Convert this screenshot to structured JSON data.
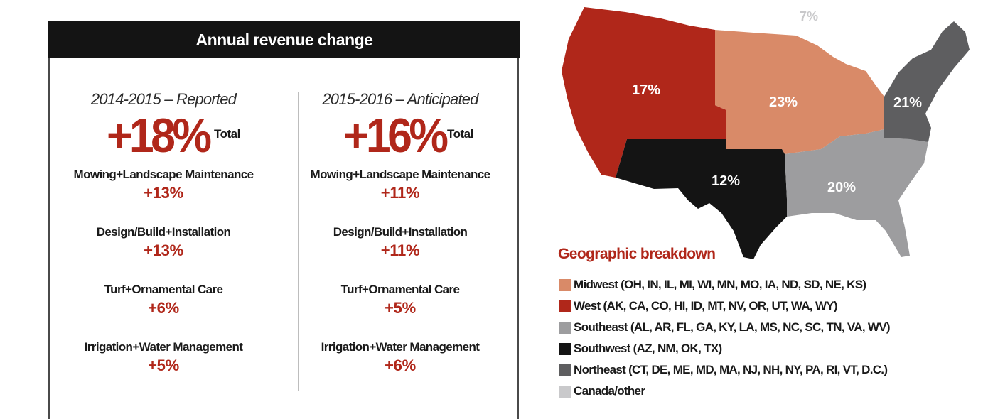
{
  "revenue": {
    "title": "Annual revenue change",
    "columns": [
      {
        "period": "2014-2015 – Reported",
        "total_value": "+18%",
        "total_label": "Total",
        "items": [
          {
            "label": "Mowing+Landscape Maintenance",
            "value": "+13%"
          },
          {
            "label": "Design/Build+Installation",
            "value": "+13%"
          },
          {
            "label": "Turf+Ornamental Care",
            "value": "+6%"
          },
          {
            "label": "Irrigation+Water Management",
            "value": "+5%"
          }
        ]
      },
      {
        "period": "2015-2016 – Anticipated",
        "total_value": "+16%",
        "total_label": "Total",
        "items": [
          {
            "label": "Mowing+Landscape Maintenance",
            "value": "+11%"
          },
          {
            "label": "Design/Build+Installation",
            "value": "+11%"
          },
          {
            "label": "Turf+Ornamental Care",
            "value": "+5%"
          },
          {
            "label": "Irrigation+Water Management",
            "value": "+6%"
          }
        ]
      }
    ]
  },
  "geo": {
    "title": "Geographic breakdown",
    "regions": [
      {
        "label": "Midwest (OH, IN, IL, MI, WI, MN, MO, IA, ND, SD, NE, KS)",
        "percent": "23%",
        "color": "#d98a68"
      },
      {
        "label": "West (AK, CA, CO, HI, ID, MT, NV, OR, UT, WA, WY)",
        "percent": "17%",
        "color": "#b0271a"
      },
      {
        "label": "Southeast (AL, AR, FL, GA, KY, LA, MS, NC, SC, TN, VA, WV)",
        "percent": "20%",
        "color": "#9d9d9f"
      },
      {
        "label": "Southwest (AZ, NM, OK, TX)",
        "percent": "12%",
        "color": "#141414"
      },
      {
        "label": "Northeast (CT, DE, ME, MD, MA, NJ, NH, NY, PA, RI, VT, D.C.)",
        "percent": "21%",
        "color": "#5e5e60"
      },
      {
        "label": "Canada/other",
        "percent": "7%",
        "color": "#c9c9cb"
      }
    ]
  }
}
